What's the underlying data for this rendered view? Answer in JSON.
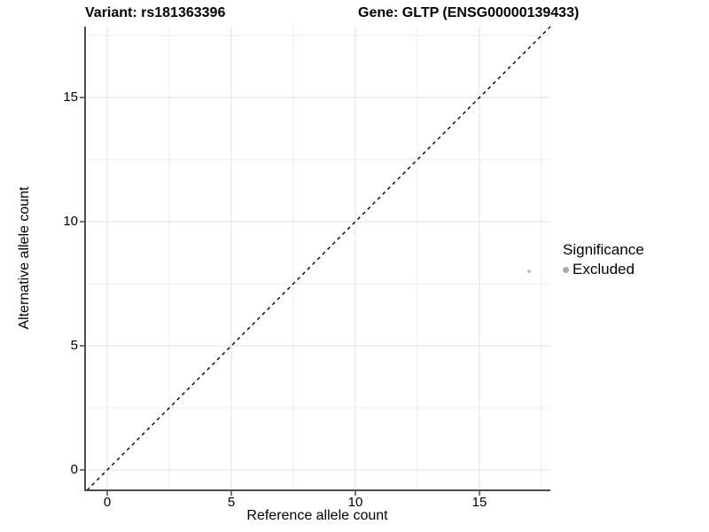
{
  "titles": {
    "variant": "Variant: rs181363396",
    "gene": "Gene: GLTP (ENSG00000139433)"
  },
  "chart_data": {
    "type": "scatter",
    "title": "Variant: rs181363396 / Gene: GLTP (ENSG00000139433)",
    "xlabel": "Reference allele count",
    "ylabel": "Alternative allele count",
    "xlim": [
      -0.893,
      17.857
    ],
    "ylim": [
      -0.821,
      17.857
    ],
    "x_major_ticks": [
      0,
      5,
      10,
      15
    ],
    "y_major_ticks": [
      0,
      5,
      10,
      15
    ],
    "x_minor_ticks": [
      2.5,
      7.5,
      12.5,
      17.5
    ],
    "y_minor_ticks": [
      2.5,
      7.5,
      12.5,
      17.5
    ],
    "grid": true,
    "series": [
      {
        "name": "Excluded",
        "points": [
          {
            "x": 17,
            "y": 8
          }
        ]
      }
    ],
    "reference_line": {
      "slope": 1,
      "intercept": 0,
      "style": "dashed"
    },
    "legend": {
      "title": "Significance",
      "position": "right",
      "items": [
        {
          "label": "Excluded"
        }
      ]
    }
  },
  "colors": {
    "background": "#ffffff",
    "axis_line": "#4d4d4d",
    "grid_major": "#e2e2e2",
    "grid_minor": "#ebebeb",
    "reference_line": "#000000",
    "point": "#c5c5c5",
    "legend_key": "#a8a8a8",
    "text": "#000000"
  }
}
